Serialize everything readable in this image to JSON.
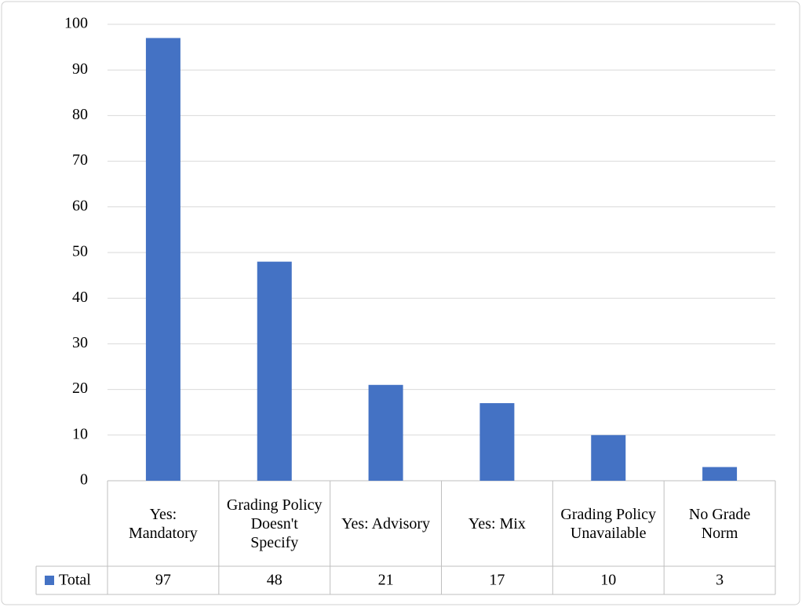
{
  "chart_data": {
    "type": "bar",
    "categories": [
      "Yes: Mandatory",
      "Grading Policy Doesn't Specify",
      "Yes: Advisory",
      "Yes: Mix",
      "Grading Policy Unavailable",
      "No Grade Norm"
    ],
    "series": [
      {
        "name": "Total",
        "color": "#4472c4",
        "values": [
          97,
          48,
          21,
          17,
          10,
          3
        ]
      }
    ],
    "ylim": [
      0,
      100
    ],
    "yticks": [
      0,
      10,
      20,
      30,
      40,
      50,
      60,
      70,
      80,
      90,
      100
    ],
    "grid": true
  }
}
